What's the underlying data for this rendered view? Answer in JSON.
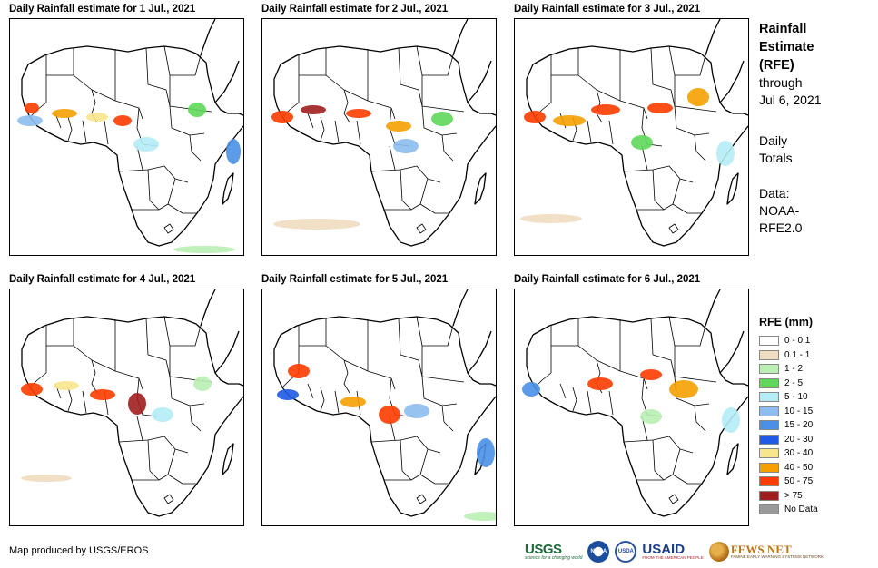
{
  "maps": [
    {
      "title": "Daily Rainfall estimate for 1 Jul., 2021",
      "rainfall": [
        {
          "band": "west-coast",
          "level": "50 - 75"
        },
        {
          "band": "west-coast-south",
          "level": "10 - 15"
        },
        {
          "band": "sahel-west",
          "level": "40 - 50"
        },
        {
          "band": "sahel-central",
          "level": "30 - 40"
        },
        {
          "band": "nigeria",
          "level": "50 - 75"
        },
        {
          "band": "central-africa",
          "level": "5 - 10"
        },
        {
          "band": "ethiopia",
          "level": "2 - 5"
        },
        {
          "band": "east-ocean",
          "level": "15 - 20"
        },
        {
          "band": "south-ocean",
          "level": "1 - 2"
        }
      ]
    },
    {
      "title": "Daily Rainfall estimate for 2 Jul., 2021",
      "rainfall": [
        {
          "band": "west-coast",
          "level": "50 - 75"
        },
        {
          "band": "sahel-west",
          "level": "> 75"
        },
        {
          "band": "sahel-central",
          "level": "50 - 75"
        },
        {
          "band": "nigeria",
          "level": "40 - 50"
        },
        {
          "band": "central-africa",
          "level": "10 - 15"
        },
        {
          "band": "ethiopia",
          "level": "2 - 5"
        },
        {
          "band": "south-ocean",
          "level": "0.1 - 1"
        }
      ]
    },
    {
      "title": "Daily Rainfall estimate for 3 Jul., 2021",
      "rainfall": [
        {
          "band": "west-coast",
          "level": "50 - 75"
        },
        {
          "band": "sahel-west",
          "level": "40 - 50"
        },
        {
          "band": "sahel-central",
          "level": "50 - 75"
        },
        {
          "band": "sudan",
          "level": "50 - 75"
        },
        {
          "band": "ethiopia",
          "level": "40 - 50"
        },
        {
          "band": "central-africa",
          "level": "2 - 5"
        },
        {
          "band": "east-ocean",
          "level": "5 - 10"
        },
        {
          "band": "south-ocean",
          "level": "0.1 - 1"
        }
      ]
    },
    {
      "title": "Daily Rainfall estimate for 4 Jul., 2021",
      "rainfall": [
        {
          "band": "west-coast",
          "level": "50 - 75"
        },
        {
          "band": "sahel-west",
          "level": "30 - 40"
        },
        {
          "band": "nigeria",
          "level": "50 - 75"
        },
        {
          "band": "cameroon",
          "level": "> 75"
        },
        {
          "band": "central-africa",
          "level": "5 - 10"
        },
        {
          "band": "ethiopia",
          "level": "1 - 2"
        },
        {
          "band": "south-ocean",
          "level": "0.1 - 1"
        }
      ]
    },
    {
      "title": "Daily Rainfall estimate for 5 Jul., 2021",
      "rainfall": [
        {
          "band": "mali",
          "level": "50 - 75"
        },
        {
          "band": "west-coast",
          "level": "20 - 30"
        },
        {
          "band": "nigeria",
          "level": "40 - 50"
        },
        {
          "band": "cameroon",
          "level": "50 - 75"
        },
        {
          "band": "central-africa",
          "level": "10 - 15"
        },
        {
          "band": "east-ocean",
          "level": "15 - 20"
        },
        {
          "band": "south-ocean",
          "level": "1 - 2"
        }
      ]
    },
    {
      "title": "Daily Rainfall estimate for 6 Jul., 2021",
      "rainfall": [
        {
          "band": "west-coast",
          "level": "15 - 20"
        },
        {
          "band": "nigeria",
          "level": "50 - 75"
        },
        {
          "band": "sudan",
          "level": "50 - 75"
        },
        {
          "band": "ethiopia",
          "level": "40 - 50"
        },
        {
          "band": "central-africa",
          "level": "1 - 2"
        },
        {
          "band": "east-ocean",
          "level": "5 - 10"
        }
      ]
    }
  ],
  "side_panel": {
    "title_lines": [
      "Rainfall",
      "Estimate",
      "(RFE)"
    ],
    "through_lines": [
      "through",
      "Jul 6, 2021"
    ],
    "totals_lines": [
      "Daily",
      "Totals"
    ],
    "data_lines": [
      "Data:",
      "NOAA-",
      "RFE2.0"
    ]
  },
  "legend": {
    "title": "RFE (mm)",
    "items": [
      {
        "label": "0 - 0.1",
        "color": "#ffffff"
      },
      {
        "label": "0.1 - 1",
        "color": "#f0dcc0"
      },
      {
        "label": "1 - 2",
        "color": "#b9f0b2"
      },
      {
        "label": "2 - 5",
        "color": "#5fd75a"
      },
      {
        "label": "5 - 10",
        "color": "#b4ecf5"
      },
      {
        "label": "10 - 15",
        "color": "#8cbcf0"
      },
      {
        "label": "15 - 20",
        "color": "#4a90e6"
      },
      {
        "label": "20 - 30",
        "color": "#1e5ae6"
      },
      {
        "label": "30 - 40",
        "color": "#f7e68c"
      },
      {
        "label": "40 - 50",
        "color": "#f5a000"
      },
      {
        "label": "50 - 75",
        "color": "#ff3c00"
      },
      {
        "label": "> 75",
        "color": "#a01e1e"
      },
      {
        "label": "No Data",
        "color": "#999999"
      }
    ]
  },
  "footer": {
    "credit": "Map produced by USGS/EROS",
    "logos": {
      "usgs": "USGS",
      "usgs_tag": "science for a changing world",
      "noaa": "NOAA",
      "usda": "USDA",
      "usaid": "USAID",
      "usaid_tag": "FROM THE AMERICAN PEOPLE",
      "fews": "FEWS NET",
      "fews_tag": "FAMINE EARLY WARNING SYSTEMS NETWORK"
    }
  }
}
